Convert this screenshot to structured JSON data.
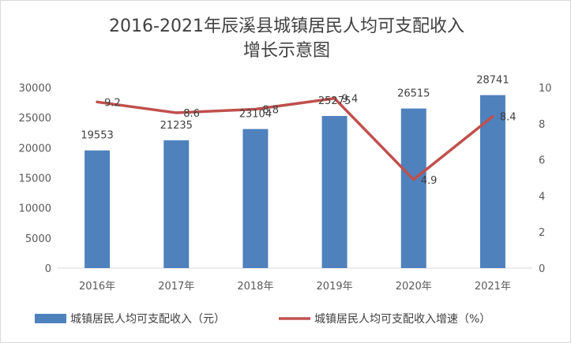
{
  "chart_data": {
    "type": "bar+line",
    "title_lines": [
      "2016-2021年辰溪县城镇居民人均可支配收入",
      "增长示意图"
    ],
    "categories": [
      "2016年",
      "2017年",
      "2018年",
      "2019年",
      "2020年",
      "2021年"
    ],
    "series": [
      {
        "name": "城镇居民人均可支配收入（元）",
        "type": "bar",
        "axis": "left",
        "color": "#4f81bd",
        "values": [
          19553,
          21235,
          23104,
          25275,
          26515,
          28741
        ],
        "labels": [
          "19553",
          "21235",
          "23104",
          "25275",
          "26515",
          "28741"
        ]
      },
      {
        "name": "城镇居民人均可支配收入增速（%）",
        "type": "line",
        "axis": "right",
        "color": "#c0504d",
        "values": [
          9.2,
          8.6,
          8.8,
          9.4,
          4.9,
          8.4
        ],
        "labels": [
          "9.2",
          "8.6",
          "8.8",
          "9.4",
          "4.9",
          "8.4"
        ]
      }
    ],
    "y_left": {
      "min": 0,
      "max": 30000,
      "ticks": [
        "0",
        "5000",
        "10000",
        "15000",
        "20000",
        "25000",
        "30000"
      ]
    },
    "y_right": {
      "min": 0,
      "max": 10,
      "ticks": [
        "0",
        "2",
        "4",
        "6",
        "8",
        "10"
      ]
    },
    "grid": false,
    "legend_position": "bottom"
  }
}
